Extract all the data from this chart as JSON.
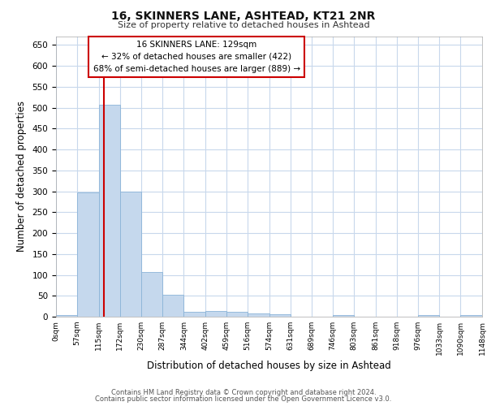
{
  "title1": "16, SKINNERS LANE, ASHTEAD, KT21 2NR",
  "title2": "Size of property relative to detached houses in Ashtead",
  "xlabel": "Distribution of detached houses by size in Ashtead",
  "ylabel": "Number of detached properties",
  "footer1": "Contains HM Land Registry data © Crown copyright and database right 2024.",
  "footer2": "Contains public sector information licensed under the Open Government Licence v3.0.",
  "annotation_line1": "16 SKINNERS LANE: 129sqm",
  "annotation_line2": "← 32% of detached houses are smaller (422)",
  "annotation_line3": "68% of semi-detached houses are larger (889) →",
  "property_size": 129,
  "bin_edges": [
    0,
    57,
    115,
    172,
    230,
    287,
    344,
    402,
    459,
    516,
    574,
    631,
    689,
    746,
    803,
    861,
    918,
    976,
    1033,
    1090,
    1148
  ],
  "bar_heights": [
    3,
    297,
    506,
    300,
    106,
    53,
    12,
    13,
    12,
    8,
    5,
    0,
    0,
    4,
    0,
    0,
    0,
    3,
    0,
    4
  ],
  "bar_color": "#c5d8ed",
  "bar_edge_color": "#8bb4d8",
  "vline_color": "#cc0000",
  "vline_x": 129,
  "grid_color": "#c8d8ec",
  "bg_color": "#ffffff",
  "annotation_box_edge": "#cc0000",
  "ylim": [
    0,
    670
  ],
  "yticks": [
    0,
    50,
    100,
    150,
    200,
    250,
    300,
    350,
    400,
    450,
    500,
    550,
    600,
    650
  ]
}
